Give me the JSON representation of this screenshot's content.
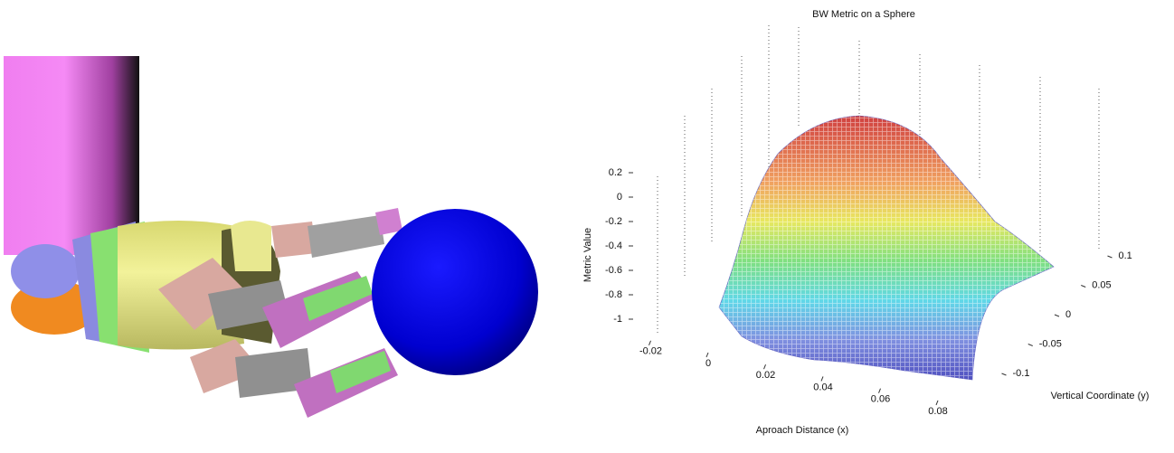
{
  "chart_data": {
    "type": "surface3d",
    "title": "BW Metric on a Sphere",
    "xlabel": "Aproach Distance (x)",
    "ylabel": "Vertical Coordinate (y)",
    "zlabel": "Metric Value",
    "xticks": [
      -0.02,
      0,
      0.02,
      0.04,
      0.06,
      0.08
    ],
    "yticks": [
      -0.1,
      -0.05,
      0,
      0.05,
      0.1
    ],
    "zticks": [
      -1,
      -0.8,
      -0.6,
      -0.4,
      -0.2,
      0,
      0.2
    ]
  }
}
